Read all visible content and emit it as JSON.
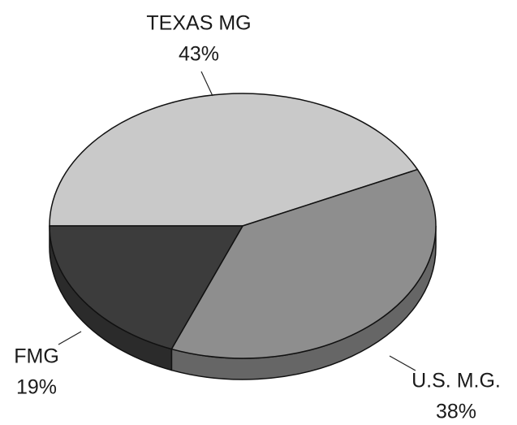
{
  "chart_data": {
    "type": "pie",
    "categories": [
      "TEXAS MG",
      "U.S. M.G.",
      "FMG"
    ],
    "values": [
      43,
      38,
      19
    ],
    "value_labels": [
      "43%",
      "38%",
      "19%"
    ],
    "colors": [
      "#c9c9c9",
      "#8e8e8e",
      "#3c3c3c"
    ]
  }
}
